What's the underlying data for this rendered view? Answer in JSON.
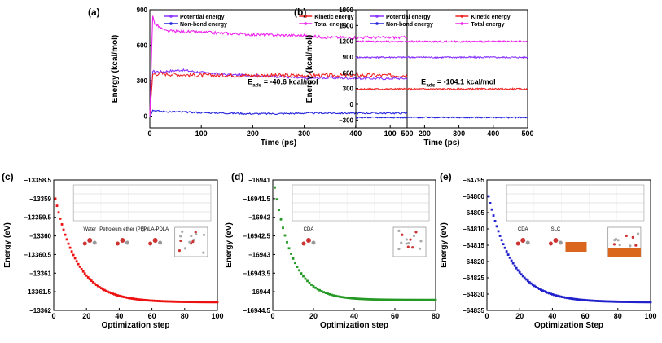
{
  "chart_data": [
    {
      "type": "line",
      "label": "(a)",
      "xlabel": "Time (ps)",
      "ylabel": "Energy (kcal/mol)",
      "xlim": [
        0,
        500
      ],
      "ylim": [
        -100,
        900
      ],
      "xticks": [
        0,
        100,
        200,
        300,
        400,
        500
      ],
      "yticks": [
        0,
        300,
        600,
        900
      ],
      "annotation": "E_ads = -40.6 kcal/mol",
      "annotation_main": "E",
      "annotation_sub": "ads",
      "annotation_rest": " = -40.6 kcal/mol",
      "legend": [
        "Potential energy",
        "Kinetic energy",
        "Non-bond energy",
        "Total energy"
      ],
      "series": [
        {
          "name": "Potential energy",
          "color": "#8833ff",
          "x": [
            0,
            5,
            20,
            60,
            100,
            150,
            200,
            250,
            300,
            350,
            400,
            450,
            500
          ],
          "y": [
            0,
            380,
            375,
            390,
            370,
            350,
            345,
            335,
            320,
            325,
            320,
            318,
            320
          ],
          "noise": 10
        },
        {
          "name": "Kinetic energy",
          "color": "#ee2222",
          "x": [
            0,
            5,
            20,
            60,
            100,
            150,
            200,
            250,
            300,
            350,
            400,
            450,
            500
          ],
          "y": [
            0,
            355,
            360,
            350,
            345,
            345,
            345,
            345,
            345,
            345,
            345,
            345,
            345
          ],
          "noise": 16
        },
        {
          "name": "Non-bond energy",
          "color": "#2222dd",
          "x": [
            0,
            5,
            20,
            60,
            100,
            150,
            200,
            250,
            300,
            350,
            400,
            450,
            500
          ],
          "y": [
            0,
            50,
            40,
            35,
            30,
            25,
            20,
            20,
            25,
            25,
            25,
            25,
            25
          ],
          "noise": 7
        },
        {
          "name": "Total energy",
          "color": "#ee22ee",
          "x": [
            0,
            3,
            10,
            30,
            60,
            100,
            150,
            200,
            250,
            300,
            350,
            400,
            450,
            500
          ],
          "y": [
            0,
            880,
            780,
            720,
            715,
            710,
            700,
            690,
            685,
            680,
            665,
            665,
            665,
            665
          ],
          "noise": 12
        }
      ]
    },
    {
      "type": "line",
      "label": "(b)",
      "xlabel": "Time (ps)",
      "ylabel": "Energy (kcal/mol)",
      "xlim": [
        0,
        500
      ],
      "ylim": [
        -450,
        1800
      ],
      "xticks": [
        0,
        100,
        200,
        300,
        400,
        500
      ],
      "yticks": [
        -300,
        0,
        300,
        600,
        900,
        1200,
        1500,
        1800
      ],
      "annotation": "E_ads = -104.1 kcal/mol",
      "annotation_main": "E",
      "annotation_sub": "ads",
      "annotation_rest": " = -104.1 kcal/mol",
      "legend": [
        "Potential energy",
        "Kinetic energy",
        "Non-bond energy",
        "Total energy"
      ],
      "series": [
        {
          "name": "Potential energy",
          "color": "#8833ff",
          "x": [
            0,
            500
          ],
          "y": [
            895,
            895
          ],
          "noise": 15
        },
        {
          "name": "Kinetic energy",
          "color": "#ee2222",
          "x": [
            0,
            500
          ],
          "y": [
            290,
            290
          ],
          "noise": 15
        },
        {
          "name": "Non-bond energy",
          "color": "#2222dd",
          "x": [
            0,
            500
          ],
          "y": [
            -250,
            -250
          ],
          "noise": 12
        },
        {
          "name": "Total energy",
          "color": "#ee22ee",
          "x": [
            0,
            500
          ],
          "y": [
            1195,
            1195
          ],
          "noise": 15
        }
      ]
    },
    {
      "type": "scatter",
      "label": "(c)",
      "xlabel": "Optimization step",
      "ylabel": "Energy (eV)",
      "xlim": [
        0,
        100
      ],
      "ylim": [
        -13362.0,
        -13358.5
      ],
      "xticks": [
        0,
        20,
        40,
        60,
        80,
        100
      ],
      "yticks": [
        -13358.5,
        -13359.0,
        -13359.5,
        -13360.0,
        -13360.5,
        -13361.0,
        -13361.5,
        -13362.0
      ],
      "color": "#ee1111",
      "curve": {
        "start": -13359.0,
        "end": -13361.78,
        "tau": 14
      },
      "structure_labels": [
        "Water",
        "Petroleum ether (PE)",
        "(P)LA-PDLA"
      ]
    },
    {
      "type": "scatter",
      "label": "(d)",
      "xlabel": "Optimization step",
      "ylabel": "Energy (eV)",
      "xlim": [
        0,
        80
      ],
      "ylim": [
        -16944.5,
        -16941.0
      ],
      "xticks": [
        0,
        20,
        40,
        60,
        80
      ],
      "yticks": [
        -16941.0,
        -16941.5,
        -16942.0,
        -16942.5,
        -16943.0,
        -16943.5,
        -16944.0,
        -16944.5
      ],
      "color": "#229922",
      "curve": {
        "start": -16941.2,
        "end": -16944.22,
        "tau": 9
      },
      "structure_labels": [
        "CDA"
      ]
    },
    {
      "type": "scatter",
      "label": "(e)",
      "xlabel": "Optimization Step",
      "ylabel": "Energy (eV)",
      "xlim": [
        0,
        100
      ],
      "ylim": [
        -64835,
        -64795
      ],
      "xticks": [
        0,
        20,
        40,
        60,
        80,
        100
      ],
      "yticks": [
        -64795,
        -64800,
        -64805,
        -64810,
        -64815,
        -64820,
        -64825,
        -64830,
        -64835
      ],
      "color": "#2222cc",
      "curve": {
        "start": -64800,
        "end": -64832.5,
        "tau": 15
      },
      "structure_labels": [
        "CDA",
        "SLC"
      ]
    }
  ]
}
